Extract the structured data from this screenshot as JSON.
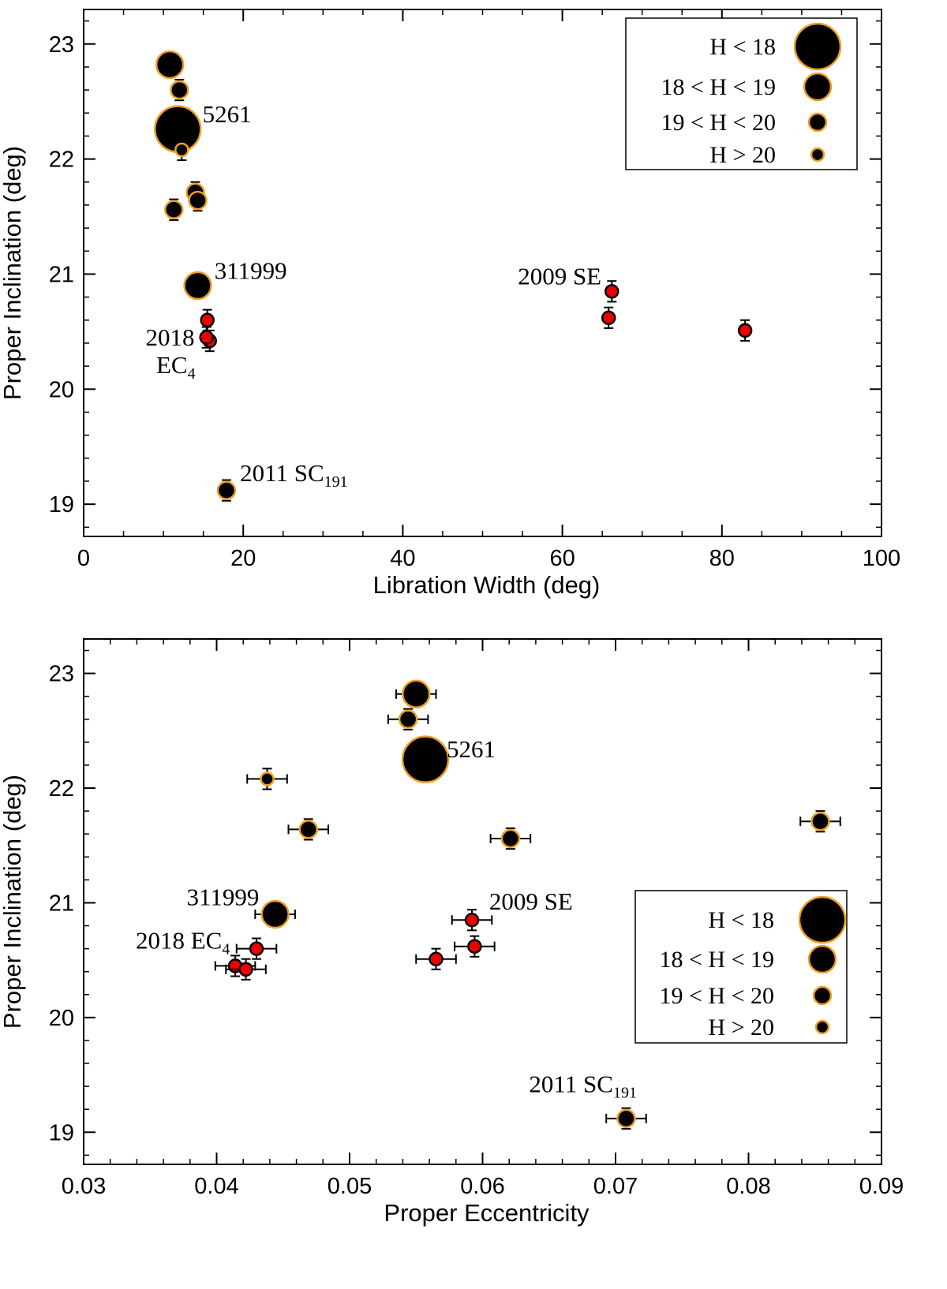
{
  "colors": {
    "black_fill": "#000000",
    "red_fill": "#ee0000",
    "orange_edge": "#f0a020",
    "axis": "#000000"
  },
  "chart_data": [
    {
      "type": "scatter",
      "title": "",
      "xlabel": "Libration Width (deg)",
      "ylabel": "Proper Inclination (deg)",
      "xlim": [
        0,
        100
      ],
      "ylim": [
        18.72,
        23.3
      ],
      "xticks": [
        0,
        20,
        40,
        60,
        80,
        100
      ],
      "yticks": [
        19,
        20,
        21,
        22,
        23
      ],
      "xtick_labels": [
        "0",
        "20",
        "40",
        "60",
        "80",
        "100"
      ],
      "ytick_labels": [
        "19",
        "20",
        "21",
        "22",
        "23"
      ],
      "x_minor_step": 5,
      "y_minor_step": 0.2,
      "legend_position": "top-right",
      "legend": [
        {
          "label": "H < 18",
          "size_class": "H<18"
        },
        {
          "label": "18 < H < 19",
          "size_class": "18<H<19"
        },
        {
          "label": "19 < H < 20",
          "size_class": "19<H<20"
        },
        {
          "label": "H > 20",
          "size_class": "H>20"
        }
      ],
      "points": [
        {
          "x": 10.8,
          "y": 22.82,
          "yerr": 0,
          "size_class": "18<H<19",
          "color": "black"
        },
        {
          "x": 12.0,
          "y": 22.6,
          "yerr": 0.09,
          "size_class": "19<H<20",
          "color": "black"
        },
        {
          "x": 11.8,
          "y": 22.26,
          "yerr": 0,
          "size_class": "H<18",
          "color": "black"
        },
        {
          "x": 12.3,
          "y": 22.08,
          "yerr": 0.09,
          "size_class": "H>20",
          "color": "black"
        },
        {
          "x": 14.0,
          "y": 21.71,
          "yerr": 0.09,
          "size_class": "19<H<20",
          "color": "black"
        },
        {
          "x": 14.3,
          "y": 21.64,
          "yerr": 0.09,
          "size_class": "19<H<20",
          "color": "black"
        },
        {
          "x": 11.3,
          "y": 21.56,
          "yerr": 0.09,
          "size_class": "19<H<20",
          "color": "black"
        },
        {
          "x": 14.3,
          "y": 20.9,
          "yerr": 0,
          "size_class": "18<H<19",
          "color": "black"
        },
        {
          "x": 15.5,
          "y": 20.6,
          "yerr": 0.09,
          "size_class": "H>20",
          "color": "red"
        },
        {
          "x": 15.8,
          "y": 20.42,
          "yerr": 0.09,
          "size_class": "H>20",
          "color": "red"
        },
        {
          "x": 15.4,
          "y": 20.45,
          "yerr": 0.09,
          "size_class": "H>20",
          "color": "red"
        },
        {
          "x": 66.2,
          "y": 20.85,
          "yerr": 0.09,
          "size_class": "H>20",
          "color": "red"
        },
        {
          "x": 65.8,
          "y": 20.62,
          "yerr": 0.09,
          "size_class": "H>20",
          "color": "red"
        },
        {
          "x": 82.9,
          "y": 20.51,
          "yerr": 0.09,
          "size_class": "H>20",
          "color": "red"
        },
        {
          "x": 17.9,
          "y": 19.12,
          "yerr": 0.09,
          "size_class": "19<H<20",
          "color": "black"
        }
      ],
      "annotations": [
        {
          "text": "5261",
          "sub": "",
          "x": 14.9,
          "y": 22.32,
          "anchor": "start"
        },
        {
          "text": "311999",
          "sub": "",
          "x": 16.4,
          "y": 20.96,
          "anchor": "start"
        },
        {
          "text": "2009 SE",
          "sub": "",
          "x": 64.9,
          "y": 20.91,
          "anchor": "end"
        },
        {
          "text": "2018",
          "sub": "",
          "x": 13.9,
          "y": 20.38,
          "anchor": "end"
        },
        {
          "text": "EC",
          "sub": "4",
          "x": 9.1,
          "y": 20.14,
          "anchor": "start"
        },
        {
          "text": "2011 SC",
          "sub": "191",
          "x": 19.6,
          "y": 19.2,
          "anchor": "start"
        }
      ]
    },
    {
      "type": "scatter",
      "title": "",
      "xlabel": "Proper Eccentricity",
      "ylabel": "Proper Inclination (deg)",
      "xlim": [
        0.03,
        0.09
      ],
      "ylim": [
        18.72,
        23.3
      ],
      "xticks": [
        0.03,
        0.04,
        0.05,
        0.06,
        0.07,
        0.08,
        0.09
      ],
      "yticks": [
        19,
        20,
        21,
        22,
        23
      ],
      "xtick_labels": [
        "0.03",
        "0.04",
        "0.05",
        "0.06",
        "0.07",
        "0.08",
        "0.09"
      ],
      "ytick_labels": [
        "19",
        "20",
        "21",
        "22",
        "23"
      ],
      "x_minor_step": 0.002,
      "y_minor_step": 0.2,
      "legend_position": "bottom-right",
      "legend": [
        {
          "label": "H < 18",
          "size_class": "H<18"
        },
        {
          "label": "18 < H < 19",
          "size_class": "18<H<19"
        },
        {
          "label": "19 < H < 20",
          "size_class": "19<H<20"
        },
        {
          "label": "H > 20",
          "size_class": "H>20"
        }
      ],
      "points": [
        {
          "x": 0.055,
          "y": 22.82,
          "xerr": 0.0015,
          "yerr": 0,
          "size_class": "18<H<19",
          "color": "black"
        },
        {
          "x": 0.0544,
          "y": 22.6,
          "xerr": 0.0015,
          "yerr": 0.09,
          "size_class": "19<H<20",
          "color": "black"
        },
        {
          "x": 0.0557,
          "y": 22.25,
          "xerr": 0,
          "yerr": 0,
          "size_class": "H<18",
          "color": "black"
        },
        {
          "x": 0.0438,
          "y": 22.08,
          "xerr": 0.0015,
          "yerr": 0.09,
          "size_class": "H>20",
          "color": "black"
        },
        {
          "x": 0.0469,
          "y": 21.64,
          "xerr": 0.0015,
          "yerr": 0.09,
          "size_class": "19<H<20",
          "color": "black"
        },
        {
          "x": 0.0621,
          "y": 21.56,
          "xerr": 0.0015,
          "yerr": 0.09,
          "size_class": "19<H<20",
          "color": "black"
        },
        {
          "x": 0.0854,
          "y": 21.71,
          "xerr": 0.0015,
          "yerr": 0.09,
          "size_class": "19<H<20",
          "color": "black"
        },
        {
          "x": 0.0444,
          "y": 20.9,
          "xerr": 0.0015,
          "yerr": 0,
          "size_class": "18<H<19",
          "color": "black"
        },
        {
          "x": 0.0592,
          "y": 20.85,
          "xerr": 0.0015,
          "yerr": 0.09,
          "size_class": "H>20",
          "color": "red"
        },
        {
          "x": 0.0594,
          "y": 20.62,
          "xerr": 0.0015,
          "yerr": 0.09,
          "size_class": "H>20",
          "color": "red"
        },
        {
          "x": 0.0565,
          "y": 20.51,
          "xerr": 0.0015,
          "yerr": 0.09,
          "size_class": "H>20",
          "color": "red"
        },
        {
          "x": 0.043,
          "y": 20.6,
          "xerr": 0.0015,
          "yerr": 0.09,
          "size_class": "H>20",
          "color": "red"
        },
        {
          "x": 0.0414,
          "y": 20.45,
          "xerr": 0.0015,
          "yerr": 0.09,
          "size_class": "H>20",
          "color": "red"
        },
        {
          "x": 0.0422,
          "y": 20.42,
          "xerr": 0.0015,
          "yerr": 0.09,
          "size_class": "H>20",
          "color": "red"
        },
        {
          "x": 0.0708,
          "y": 19.12,
          "xerr": 0.0015,
          "yerr": 0.09,
          "size_class": "19<H<20",
          "color": "black"
        }
      ],
      "annotations": [
        {
          "text": "5261",
          "sub": "",
          "x": 0.0573,
          "y": 22.27,
          "anchor": "start"
        },
        {
          "text": "311999",
          "sub": "",
          "x": 0.0432,
          "y": 20.98,
          "anchor": "end"
        },
        {
          "text": "2009 SE",
          "sub": "",
          "x": 0.0605,
          "y": 20.94,
          "anchor": "start"
        },
        {
          "text": "2018 EC",
          "sub": "4",
          "x": 0.041,
          "y": 20.6,
          "anchor": "end"
        },
        {
          "text": "2011 SC",
          "sub": "191",
          "x": 0.0716,
          "y": 19.35,
          "anchor": "end"
        }
      ]
    }
  ]
}
